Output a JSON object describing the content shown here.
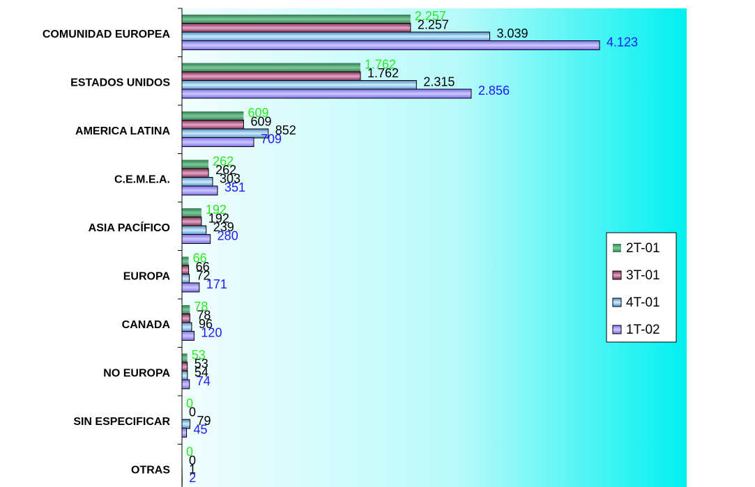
{
  "chart_data": {
    "type": "bar",
    "orientation": "horizontal",
    "categories": [
      "COMUNIDAD EUROPEA",
      "ESTADOS UNIDOS",
      "AMERICA LATINA",
      "C.E.M.E.A.",
      "ASIA PACÍFICO",
      "EUROPA",
      "CANADA",
      "NO EUROPA",
      "SIN ESPECIFICAR",
      "OTRAS"
    ],
    "series": [
      {
        "name": "2T-01",
        "values": [
          2257,
          1762,
          609,
          262,
          192,
          66,
          78,
          53,
          0,
          0
        ],
        "labels": [
          "2.257",
          "1.762",
          "609",
          "262",
          "192",
          "66",
          "78",
          "53",
          "0",
          "0"
        ],
        "color": "#3c9a64",
        "label_color": "#22ee22"
      },
      {
        "name": "3T-01",
        "values": [
          2257,
          1762,
          609,
          262,
          192,
          66,
          78,
          53,
          0,
          0
        ],
        "labels": [
          "2.257",
          "1.762",
          "609",
          "262",
          "192",
          "66",
          "78",
          "53",
          "0",
          "0"
        ],
        "color": "#9c3c6c",
        "label_color": "#000000"
      },
      {
        "name": "4T-01",
        "values": [
          3039,
          2315,
          852,
          303,
          239,
          72,
          96,
          54,
          79,
          1
        ],
        "labels": [
          "3.039",
          "2.315",
          "852",
          "303",
          "239",
          "72",
          "96",
          "54",
          "79",
          "1"
        ],
        "color": "#78b6e0",
        "label_color": "#000000"
      },
      {
        "name": "1T-02",
        "values": [
          4123,
          2856,
          709,
          351,
          280,
          171,
          120,
          74,
          45,
          2
        ],
        "labels": [
          "4.123",
          "2.856",
          "709",
          "351",
          "280",
          "171",
          "120",
          "74",
          "45",
          "2"
        ],
        "color": "#9a8ef0",
        "label_color": "#1a1aff"
      }
    ],
    "legend_position": "right",
    "grid": false,
    "background": [
      "#f2fdfd",
      "#00f0f0"
    ]
  }
}
